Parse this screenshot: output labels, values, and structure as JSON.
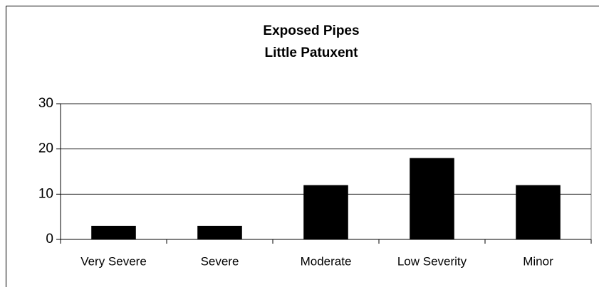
{
  "chart_data": {
    "type": "bar",
    "title": "Exposed Pipes",
    "subtitle": "Little Patuxent",
    "categories": [
      "Very Severe",
      "Severe",
      "Moderate",
      "Low Severity",
      "Minor"
    ],
    "values": [
      3,
      3,
      12,
      18,
      12
    ],
    "color": "#000000",
    "ylim": [
      0,
      30
    ],
    "yticks": [
      0,
      10,
      20,
      30
    ],
    "grid": true
  }
}
